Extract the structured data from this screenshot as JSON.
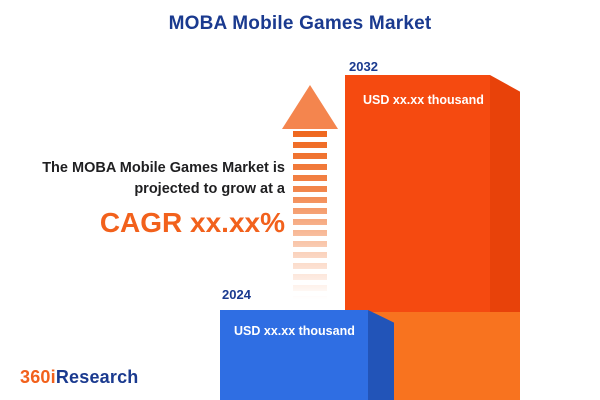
{
  "title": "MOBA Mobile Games Market",
  "annotation": {
    "line1": "The MOBA Mobile Games Market is",
    "line2": "projected to grow at a",
    "cagr": "CAGR xx.xx%"
  },
  "bars": [
    {
      "year": "2024",
      "value": "USD xx.xx thousand",
      "color": "#2f6ee3"
    },
    {
      "year": "2032",
      "value": "USD xx.xx thousand",
      "color": "#f54a10"
    }
  ],
  "logo": {
    "prefix": "360i",
    "suffix": "Research"
  },
  "colors": {
    "navy": "#1a3a8f",
    "accent_orange": "#f2611c",
    "blue_bar_front": "#2f6ee3",
    "blue_bar_side": "#2254b8",
    "orange_bar_front": "#f54a10",
    "orange_bar_side": "#e8420a",
    "orange_bar_base": "#f8731f",
    "arrow": "#ef671e"
  },
  "chart_data": {
    "type": "bar",
    "title": "MOBA Mobile Games Market",
    "categories": [
      "2024",
      "2032"
    ],
    "values": [
      "USD xx.xx thousand",
      "USD xx.xx thousand"
    ],
    "xlabel": "",
    "ylabel": "",
    "legend": false,
    "bar_colors": [
      "#2f6ee3",
      "#f54a10"
    ],
    "annotations": [
      "The MOBA Mobile Games Market is projected to grow at a CAGR xx.xx%"
    ]
  }
}
